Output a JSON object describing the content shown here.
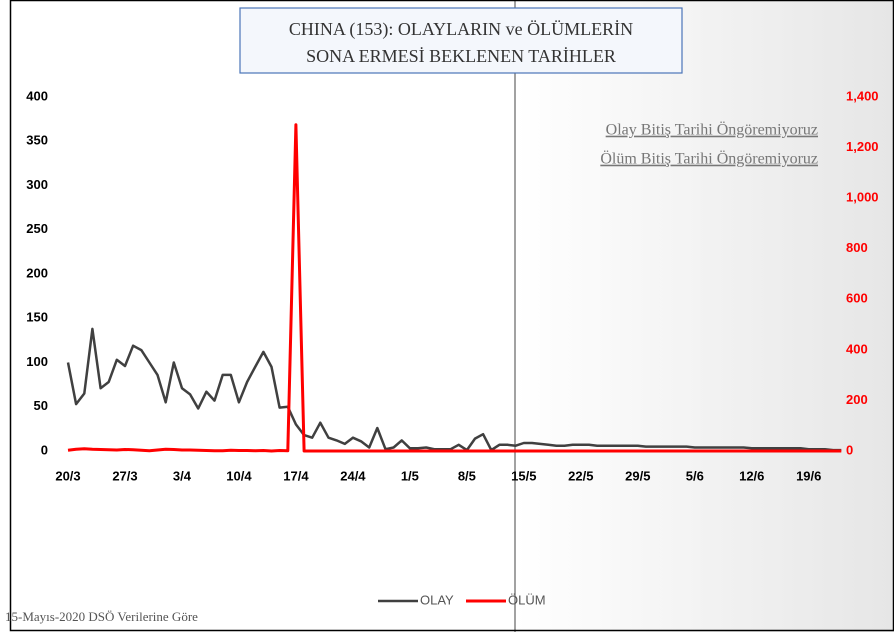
{
  "chart_data": {
    "type": "line",
    "title": [
      "CHINA (153): OLAYLARIN  ve ÖLÜMLERİN",
      "SONA ERMESİ BEKLENEN TARİHLER"
    ],
    "annotations": [
      "Olay Bitiş Tarihi Öngöremiyoruz",
      "Ölüm Bitiş Tarihi Öngöremiyoruz"
    ],
    "footer": "15-Mayıs-2020 DSÖ Verilerine Göre",
    "categories": [
      "20/3",
      null,
      null,
      null,
      null,
      null,
      null,
      "27/3",
      null,
      null,
      null,
      null,
      null,
      null,
      "3/4",
      null,
      null,
      null,
      null,
      null,
      null,
      "10/4",
      null,
      null,
      null,
      null,
      null,
      null,
      "17/4",
      null,
      null,
      null,
      null,
      null,
      null,
      "24/4",
      null,
      null,
      null,
      null,
      null,
      null,
      "1/5",
      null,
      null,
      null,
      null,
      null,
      null,
      "8/5",
      null,
      null,
      null,
      null,
      null,
      null,
      "15/5",
      null,
      null,
      null,
      null,
      null,
      null,
      "22/5",
      null,
      null,
      null,
      null,
      null,
      null,
      "29/5",
      null,
      null,
      null,
      null,
      null,
      null,
      "5/6",
      null,
      null,
      null,
      null,
      null,
      null,
      "12/6",
      null,
      null,
      null,
      null,
      null,
      null,
      "19/6",
      null,
      null,
      null,
      null
    ],
    "series": [
      {
        "name": "OLAY",
        "color": "#404040",
        "values": [
          100,
          53,
          65,
          138,
          71,
          78,
          103,
          96,
          119,
          114,
          100,
          86,
          55,
          100,
          71,
          64,
          48,
          67,
          57,
          86,
          86,
          55,
          78,
          95,
          112,
          95,
          49,
          50,
          30,
          18,
          15,
          32,
          15,
          12,
          8,
          15,
          11,
          4,
          26,
          2,
          4,
          12,
          3,
          3,
          4,
          2,
          2,
          2,
          7,
          1,
          14,
          19,
          1,
          7,
          7,
          6,
          9,
          9,
          8,
          7,
          6,
          6,
          7,
          7,
          7,
          6,
          6,
          6,
          6,
          6,
          6,
          5,
          5,
          5,
          5,
          5,
          5,
          4,
          4,
          4,
          4,
          4,
          4,
          4,
          3,
          3,
          3,
          3,
          3,
          3,
          3,
          2,
          2,
          2,
          1,
          1
        ]
      },
      {
        "name": "ÖLÜM",
        "color": "#ff0000",
        "axis": "y2",
        "values": [
          3,
          7,
          9,
          7,
          6,
          5,
          4,
          6,
          5,
          3,
          1,
          4,
          7,
          6,
          4,
          4,
          3,
          2,
          1,
          1,
          3,
          2,
          2,
          1,
          2,
          0,
          2,
          1,
          1290,
          0,
          0,
          0,
          0,
          0,
          0,
          0,
          0,
          0,
          0,
          0,
          0,
          0,
          0,
          0,
          0,
          0,
          0,
          0,
          0,
          0,
          0,
          0,
          0,
          0,
          0,
          0,
          0,
          0,
          0,
          0,
          0,
          0,
          0,
          0,
          0,
          0,
          0,
          0,
          0,
          0,
          0,
          0,
          0,
          0,
          0,
          0,
          0,
          0,
          0,
          0,
          0,
          0,
          0,
          0,
          0,
          0,
          0,
          0,
          0,
          0,
          0,
          0,
          0,
          0,
          0,
          0
        ]
      }
    ],
    "ylim": [
      0,
      400
    ],
    "yticks": [
      0,
      50,
      100,
      150,
      200,
      250,
      300,
      350,
      400
    ],
    "y2lim": [
      0,
      1400
    ],
    "y2ticks": [
      0,
      200,
      400,
      600,
      800,
      {
        "value": 1000,
        "label": "1,000"
      },
      {
        "value": 1200,
        "label": "1,200"
      },
      {
        "value": 1400,
        "label": "1,400"
      }
    ],
    "legend": "bottom"
  }
}
